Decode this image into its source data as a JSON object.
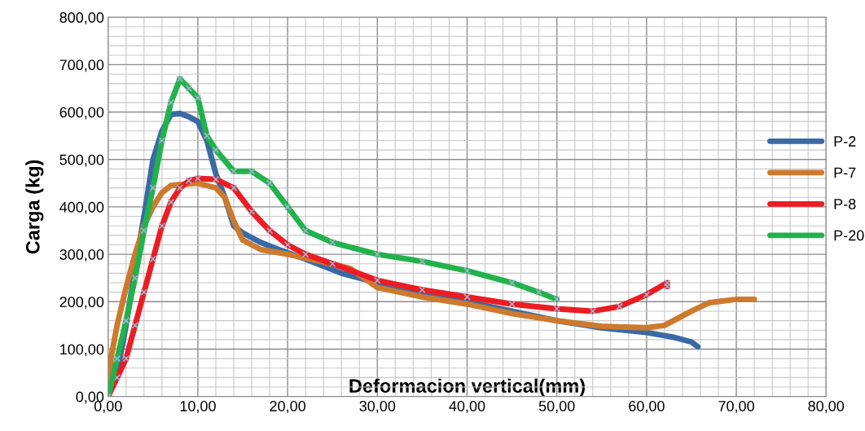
{
  "chart_data": {
    "type": "line",
    "xlabel": "Deformacion vertical(mm)",
    "ylabel": "Carga (kg)",
    "xlim": [
      0,
      80
    ],
    "ylim": [
      0,
      800
    ],
    "xticks": [
      {
        "value": 0,
        "label": "0,00"
      },
      {
        "value": 10,
        "label": "10,00"
      },
      {
        "value": 20,
        "label": "20,00"
      },
      {
        "value": 30,
        "label": "30,00"
      },
      {
        "value": 40,
        "label": "40,00"
      },
      {
        "value": 50,
        "label": "50,00"
      },
      {
        "value": 60,
        "label": "60,00"
      },
      {
        "value": 70,
        "label": "70,00"
      },
      {
        "value": 80,
        "label": "80,00"
      }
    ],
    "yticks": [
      {
        "value": 0,
        "label": "0,00"
      },
      {
        "value": 100,
        "label": "100,00"
      },
      {
        "value": 200,
        "label": "200,00"
      },
      {
        "value": 300,
        "label": "300,00"
      },
      {
        "value": 400,
        "label": "400,00"
      },
      {
        "value": 500,
        "label": "500,00"
      },
      {
        "value": 600,
        "label": "600,00"
      },
      {
        "value": 700,
        "label": "700,00"
      },
      {
        "value": 800,
        "label": "800,00"
      }
    ],
    "grid": true,
    "legend": "right",
    "line_style": "solid",
    "series": [
      {
        "name": "P-2",
        "color": "#3a6aa3",
        "marker": "none",
        "x": [
          0,
          1,
          2,
          3,
          4,
          5,
          6,
          7,
          8,
          9,
          10,
          11,
          12,
          13,
          14,
          15,
          16,
          17,
          19,
          22,
          26,
          30,
          35,
          40,
          45,
          50,
          55,
          60,
          63,
          65,
          65.7
        ],
        "values": [
          0,
          50,
          150,
          270,
          380,
          500,
          560,
          595,
          597,
          590,
          580,
          540,
          470,
          420,
          360,
          345,
          335,
          325,
          310,
          290,
          260,
          240,
          220,
          200,
          180,
          160,
          145,
          135,
          125,
          115,
          105
        ]
      },
      {
        "name": "P-7",
        "color": "#cd7a2e",
        "marker": "none",
        "x": [
          0,
          0.3,
          1,
          2,
          3,
          4,
          5,
          6,
          7,
          8,
          10,
          12,
          13,
          14,
          15,
          17,
          20,
          25,
          27,
          30,
          35,
          40,
          45,
          50,
          55,
          60,
          62,
          65,
          67,
          70,
          72
        ],
        "values": [
          0,
          80,
          150,
          230,
          300,
          360,
          400,
          430,
          445,
          447,
          450,
          440,
          420,
          370,
          330,
          310,
          300,
          280,
          270,
          230,
          210,
          195,
          175,
          160,
          148,
          145,
          150,
          180,
          198,
          205,
          205
        ]
      },
      {
        "name": "P-8",
        "color": "#ec1c24",
        "marker": "cross",
        "x": [
          0,
          1,
          2,
          3,
          4,
          5,
          6,
          7,
          8,
          9,
          10,
          12,
          14,
          16,
          18,
          20,
          22,
          25,
          30,
          35,
          40,
          45,
          50,
          54,
          57,
          60,
          62.3,
          62.3
        ],
        "values": [
          0,
          40,
          80,
          150,
          220,
          290,
          360,
          410,
          440,
          455,
          460,
          458,
          440,
          390,
          350,
          320,
          300,
          280,
          245,
          225,
          210,
          195,
          185,
          180,
          190,
          215,
          240,
          232
        ]
      },
      {
        "name": "P-20",
        "color": "#22b24c",
        "marker": "cross",
        "x": [
          0,
          1,
          2,
          3,
          4,
          5,
          6,
          7,
          8,
          9,
          10,
          11,
          12,
          14,
          16,
          18,
          20,
          22,
          25,
          30,
          35,
          40,
          45,
          48,
          50
        ],
        "values": [
          0,
          80,
          160,
          250,
          350,
          440,
          540,
          620,
          670,
          650,
          630,
          550,
          520,
          475,
          475,
          450,
          400,
          350,
          325,
          300,
          285,
          265,
          240,
          220,
          205
        ]
      }
    ]
  }
}
